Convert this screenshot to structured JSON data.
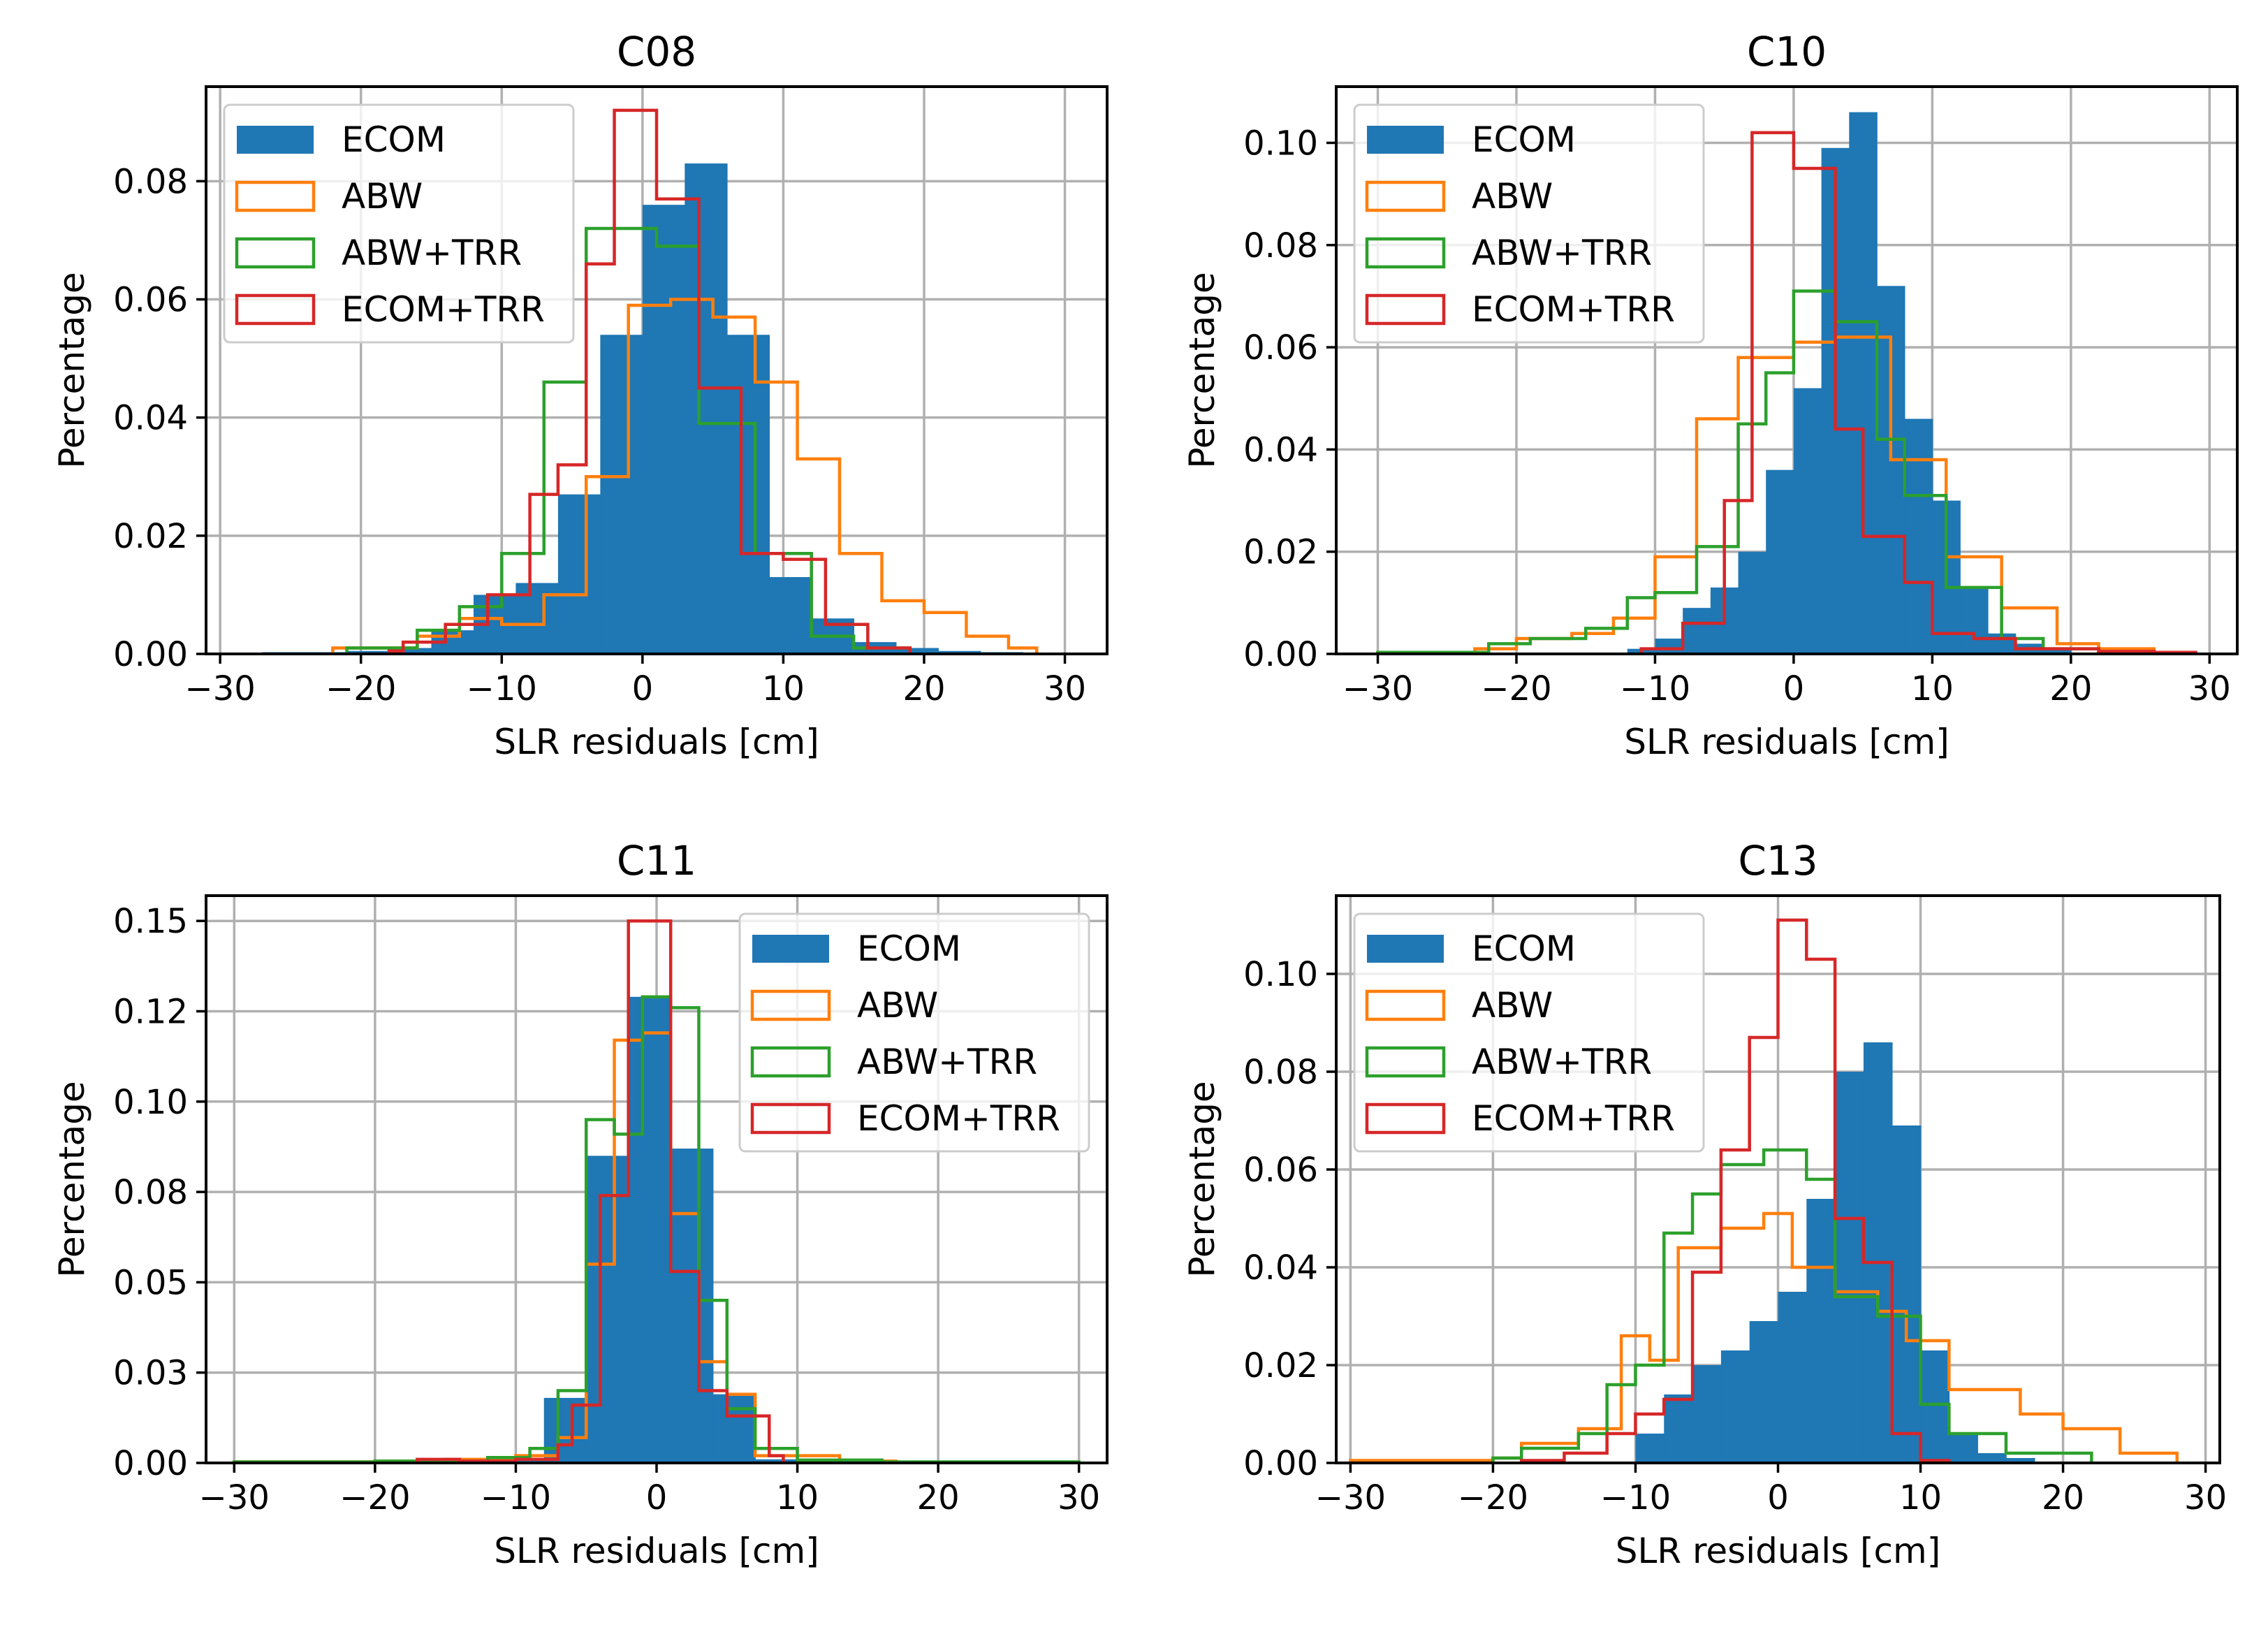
{
  "figure": {
    "colors": {
      "ECOM": "#1f77b4",
      "ABW": "#ff7f0e",
      "ABW+TRR": "#2ca02c",
      "ECOM+TRR": "#d62728",
      "grid": "#b0b0b0"
    }
  },
  "chart_data": [
    {
      "type": "bar",
      "title": "C08",
      "xlabel": "SLR residuals [cm]",
      "ylabel": "Percentage",
      "xlim": [
        -31,
        33
      ],
      "ylim": [
        0,
        0.096
      ],
      "xticks": [
        -30,
        -20,
        -10,
        0,
        10,
        20,
        30
      ],
      "xtick_labels": [
        "−30",
        "−20",
        "−10",
        "0",
        "10",
        "20",
        "30"
      ],
      "yticks": [
        0.0,
        0.02,
        0.04,
        0.06,
        0.08
      ],
      "ytick_labels": [
        "0.00",
        "0.02",
        "0.04",
        "0.06",
        "0.08"
      ],
      "legend": [
        "ECOM",
        "ABW",
        "ABW+TRR",
        "ECOM+TRR"
      ],
      "legend_position": "top-left",
      "grid": true,
      "series": [
        {
          "name": "ECOM",
          "style": "filled",
          "bins": [
            -30,
            -27,
            -24,
            -21,
            -18,
            -15,
            -12,
            -9,
            -6,
            -3,
            0,
            3,
            6,
            9,
            12,
            15,
            18,
            21,
            24,
            27,
            30
          ],
          "values": [
            0,
            0.0003,
            0.0003,
            0.0005,
            0.001,
            0.004,
            0.01,
            0.012,
            0.027,
            0.054,
            0.076,
            0.083,
            0.054,
            0.013,
            0.006,
            0.002,
            0.001,
            0.0005,
            0.0003,
            0.0002
          ]
        },
        {
          "name": "ABW",
          "style": "step",
          "bins": [
            -22,
            -19,
            -16,
            -13,
            -10,
            -7,
            -4,
            -1,
            2,
            5,
            8,
            11,
            14,
            17,
            20,
            23,
            26,
            28
          ],
          "values": [
            0.001,
            0.001,
            0.003,
            0.006,
            0.005,
            0.01,
            0.03,
            0.059,
            0.06,
            0.057,
            0.046,
            0.033,
            0.017,
            0.009,
            0.007,
            0.003,
            0.001
          ]
        },
        {
          "name": "ABW+TRR",
          "style": "step",
          "bins": [
            -21,
            -16,
            -13,
            -10,
            -7,
            -4,
            -2,
            1,
            4,
            8,
            12,
            15,
            18,
            19
          ],
          "values": [
            0.001,
            0.004,
            0.008,
            0.017,
            0.046,
            0.072,
            0.072,
            0.069,
            0.039,
            0.017,
            0.003,
            0.001,
            0.001
          ]
        },
        {
          "name": "ECOM+TRR",
          "style": "step",
          "bins": [
            -18,
            -17,
            -14,
            -11,
            -8,
            -6,
            -4,
            -2,
            1,
            4,
            7,
            10,
            13,
            16,
            19
          ],
          "values": [
            0.0005,
            0.002,
            0.005,
            0.01,
            0.027,
            0.032,
            0.066,
            0.092,
            0.077,
            0.045,
            0.017,
            0.016,
            0.005,
            0.001
          ]
        }
      ]
    },
    {
      "type": "bar",
      "title": "C10",
      "xlabel": "SLR residuals [cm]",
      "ylabel": "Percentage",
      "xlim": [
        -33,
        32
      ],
      "ylim": [
        0,
        0.111
      ],
      "xticks": [
        -30,
        -20,
        -10,
        0,
        10,
        20,
        30
      ],
      "xtick_labels": [
        "−30",
        "−20",
        "−10",
        "0",
        "10",
        "20",
        "30"
      ],
      "yticks": [
        0.0,
        0.02,
        0.04,
        0.06,
        0.08,
        0.1
      ],
      "ytick_labels": [
        "0.00",
        "0.02",
        "0.04",
        "0.06",
        "0.08",
        "0.10"
      ],
      "legend": [
        "ECOM",
        "ABW",
        "ABW+TRR",
        "ECOM+TRR"
      ],
      "legend_position": "top-left",
      "grid": true,
      "series": [
        {
          "name": "ECOM",
          "style": "filled",
          "bins": [
            -12,
            -10,
            -8,
            -6,
            -4,
            -2,
            0,
            2,
            4,
            6,
            8,
            10,
            12,
            14,
            16,
            18,
            20
          ],
          "values": [
            0.001,
            0.003,
            0.009,
            0.013,
            0.02,
            0.036,
            0.052,
            0.099,
            0.106,
            0.072,
            0.046,
            0.03,
            0.013,
            0.004,
            0.002,
            0.001
          ]
        },
        {
          "name": "ABW",
          "style": "step",
          "bins": [
            -30,
            -26,
            -23,
            -20,
            -16,
            -13,
            -10,
            -7,
            -4,
            0,
            3,
            7,
            11,
            15,
            19,
            22,
            26,
            29
          ],
          "values": [
            0.0003,
            0.0003,
            0.001,
            0.003,
            0.004,
            0.007,
            0.019,
            0.046,
            0.058,
            0.061,
            0.062,
            0.038,
            0.019,
            0.009,
            0.002,
            0.001,
            0.0003
          ]
        },
        {
          "name": "ABW+TRR",
          "style": "step",
          "bins": [
            -30,
            -26,
            -22,
            -19,
            -15,
            -12,
            -10,
            -7,
            -4,
            -2,
            0,
            3,
            6,
            8,
            11,
            15,
            18,
            22
          ],
          "values": [
            0.0003,
            0.0003,
            0.002,
            0.003,
            0.005,
            0.011,
            0.012,
            0.021,
            0.045,
            0.055,
            0.071,
            0.065,
            0.042,
            0.031,
            0.013,
            0.003,
            0.001
          ]
        },
        {
          "name": "ECOM+TRR",
          "style": "step",
          "bins": [
            -11,
            -8,
            -5,
            -3,
            0,
            3,
            5,
            8,
            10,
            13,
            16,
            19,
            22,
            26,
            29
          ],
          "values": [
            0.001,
            0.006,
            0.03,
            0.102,
            0.095,
            0.044,
            0.023,
            0.014,
            0.004,
            0.003,
            0.001,
            0.001,
            0.0005,
            0.0003
          ]
        }
      ]
    },
    {
      "type": "bar",
      "title": "C11",
      "xlabel": "SLR residuals [cm]",
      "ylabel": "Percentage",
      "xlim": [
        -32,
        32
      ],
      "ylim": [
        0,
        0.157
      ],
      "xticks": [
        -30,
        -20,
        -10,
        0,
        10,
        20,
        30
      ],
      "xtick_labels": [
        "−30",
        "−20",
        "−10",
        "0",
        "10",
        "20",
        "30"
      ],
      "yticks": [
        0.0,
        0.025,
        0.05,
        0.075,
        0.1,
        0.125,
        0.15
      ],
      "ytick_labels": [
        "0.00",
        "0.03",
        "0.05",
        "0.08",
        "0.10",
        "0.12",
        "0.15"
      ],
      "legend": [
        "ECOM",
        "ABW",
        "ABW+TRR",
        "ECOM+TRR"
      ],
      "legend_position": "top-right",
      "grid": true,
      "series": [
        {
          "name": "ECOM",
          "style": "filled",
          "bins": [
            -30,
            -26,
            -22,
            -18,
            -14,
            -11,
            -8,
            -5,
            -2,
            1,
            4,
            7,
            10,
            13,
            16,
            20,
            24,
            28,
            30
          ],
          "values": [
            0.0003,
            0.0003,
            0.0003,
            0.0005,
            0.0005,
            0.001,
            0.018,
            0.085,
            0.129,
            0.087,
            0.019,
            0.001,
            0.0005,
            0.0003,
            0.0003,
            0.0003,
            0.0003,
            0.0003
          ]
        },
        {
          "name": "ABW",
          "style": "step",
          "bins": [
            -30,
            -20,
            -15,
            -10,
            -7,
            -5,
            -3,
            -1,
            1,
            3,
            5,
            7,
            10,
            13,
            17
          ],
          "values": [
            0.0003,
            0.0005,
            0.001,
            0.002,
            0.007,
            0.055,
            0.117,
            0.119,
            0.069,
            0.028,
            0.019,
            0.002,
            0.002,
            0.0005
          ]
        },
        {
          "name": "ABW+TRR",
          "style": "step",
          "bins": [
            -30,
            -20,
            -12,
            -9,
            -7,
            -5,
            -3,
            -1,
            1,
            3,
            5,
            7,
            10,
            16,
            30
          ],
          "values": [
            0.0003,
            0.0005,
            0.0015,
            0.004,
            0.02,
            0.095,
            0.091,
            0.129,
            0.126,
            0.045,
            0.015,
            0.004,
            0.0008,
            0.0003
          ]
        },
        {
          "name": "ECOM+TRR",
          "style": "step",
          "bins": [
            -17,
            -14,
            -10,
            -7,
            -6,
            -4,
            -2,
            1,
            3,
            5,
            8,
            9
          ],
          "values": [
            0.001,
            0.0005,
            0.001,
            0.005,
            0.016,
            0.074,
            0.15,
            0.053,
            0.02,
            0.013,
            0.002
          ]
        }
      ]
    },
    {
      "type": "bar",
      "title": "C13",
      "xlabel": "SLR residuals [cm]",
      "ylabel": "Percentage",
      "xlim": [
        -31,
        31
      ],
      "ylim": [
        0,
        0.116
      ],
      "xticks": [
        -30,
        -20,
        -10,
        0,
        10,
        20,
        30
      ],
      "xtick_labels": [
        "−30",
        "−20",
        "−10",
        "0",
        "10",
        "20",
        "30"
      ],
      "yticks": [
        0.0,
        0.02,
        0.04,
        0.06,
        0.08,
        0.1
      ],
      "ytick_labels": [
        "0.00",
        "0.02",
        "0.04",
        "0.06",
        "0.08",
        "0.10"
      ],
      "legend": [
        "ECOM",
        "ABW",
        "ABW+TRR",
        "ECOM+TRR"
      ],
      "legend_position": "top-left",
      "grid": true,
      "series": [
        {
          "name": "ECOM",
          "style": "filled",
          "bins": [
            -10,
            -8,
            -6,
            -4,
            -2,
            0,
            2,
            4,
            6,
            8,
            10,
            12,
            14,
            16,
            18
          ],
          "values": [
            0.006,
            0.014,
            0.02,
            0.023,
            0.029,
            0.035,
            0.054,
            0.08,
            0.086,
            0.069,
            0.023,
            0.006,
            0.002,
            0.001
          ]
        },
        {
          "name": "ABW",
          "style": "step",
          "bins": [
            -30,
            -20,
            -18,
            -14,
            -11,
            -9,
            -7,
            -4,
            -1,
            1,
            4,
            7,
            9,
            12,
            17,
            20,
            24,
            28
          ],
          "values": [
            0.0005,
            0.001,
            0.004,
            0.007,
            0.026,
            0.021,
            0.044,
            0.048,
            0.051,
            0.04,
            0.035,
            0.031,
            0.025,
            0.015,
            0.01,
            0.007,
            0.002
          ]
        },
        {
          "name": "ABW+TRR",
          "style": "step",
          "bins": [
            -20,
            -18,
            -14,
            -12,
            -10,
            -8,
            -6,
            -4,
            -1,
            2,
            4,
            7,
            10,
            12,
            16,
            22
          ],
          "values": [
            0.001,
            0.003,
            0.006,
            0.016,
            0.02,
            0.047,
            0.055,
            0.061,
            0.064,
            0.058,
            0.034,
            0.03,
            0.012,
            0.006,
            0.002
          ]
        },
        {
          "name": "ECOM+TRR",
          "style": "step",
          "bins": [
            -18,
            -15,
            -12,
            -10,
            -8,
            -6,
            -4,
            -2,
            0,
            2,
            4,
            6,
            8,
            10,
            12
          ],
          "values": [
            0.0005,
            0.002,
            0.006,
            0.01,
            0.013,
            0.039,
            0.064,
            0.087,
            0.111,
            0.103,
            0.05,
            0.041,
            0.006,
            0.0005
          ]
        }
      ]
    }
  ]
}
